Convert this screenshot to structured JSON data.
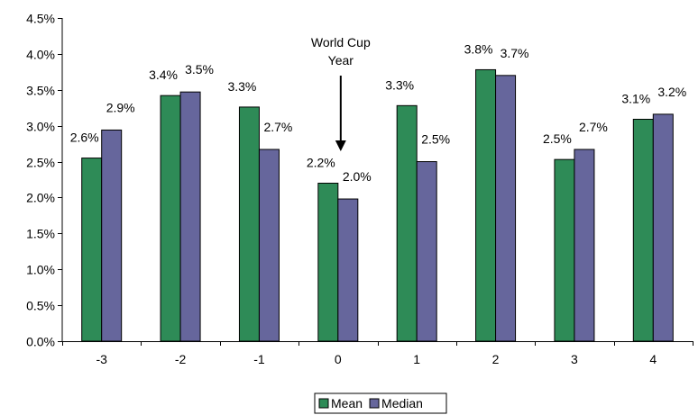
{
  "chart_data": {
    "type": "bar",
    "categories": [
      "-3",
      "-2",
      "-1",
      "0",
      "1",
      "2",
      "3",
      "4"
    ],
    "series": [
      {
        "name": "Mean",
        "color": "#2e8b57",
        "values": [
          2.55,
          3.42,
          3.26,
          2.2,
          3.28,
          3.78,
          2.53,
          3.09
        ],
        "labels": [
          "2.6%",
          "3.4%",
          "3.3%",
          "2.2%",
          "3.3%",
          "3.8%",
          "2.5%",
          "3.1%"
        ]
      },
      {
        "name": "Median",
        "color": "#66669c",
        "values": [
          2.94,
          3.47,
          2.67,
          1.98,
          2.5,
          3.7,
          2.67,
          3.16
        ],
        "labels": [
          "2.9%",
          "3.5%",
          "2.7%",
          "2.0%",
          "2.5%",
          "3.7%",
          "2.7%",
          "3.2%"
        ]
      }
    ],
    "ylim": [
      0,
      4.5
    ],
    "yticks": [
      {
        "value": 0.0,
        "label": "0.0%"
      },
      {
        "value": 0.5,
        "label": "0.5%"
      },
      {
        "value": 1.0,
        "label": "1.0%"
      },
      {
        "value": 1.5,
        "label": "1.5%"
      },
      {
        "value": 2.0,
        "label": "2.0%"
      },
      {
        "value": 2.5,
        "label": "2.5%"
      },
      {
        "value": 3.0,
        "label": "3.0%"
      },
      {
        "value": 3.5,
        "label": "3.5%"
      },
      {
        "value": 4.0,
        "label": "4.0%"
      },
      {
        "value": 4.5,
        "label": "4.5%"
      }
    ],
    "grid": false,
    "legend": "bottom-center",
    "annotation": {
      "lines": [
        "World Cup",
        "Year"
      ],
      "category": "0"
    }
  }
}
